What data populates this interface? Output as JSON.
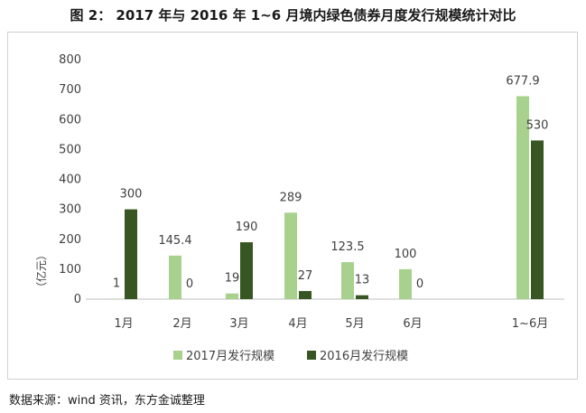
{
  "title": "图 2： 2017 年与 2016 年 1~6 月境内绿色债券月度发行规模统计对比",
  "source": "数据来源：wind 资讯，东方金诚整理",
  "chart_data": {
    "type": "bar",
    "categories": [
      "1月",
      "2月",
      "3月",
      "4月",
      "5月",
      "6月",
      "1~6月"
    ],
    "series": [
      {
        "name": "2017月发行规模",
        "color": "#a9d18e",
        "values": [
          1,
          145.4,
          19,
          289,
          123.5,
          100,
          677.9
        ]
      },
      {
        "name": "2016月发行规模",
        "color": "#375623",
        "values": [
          300,
          0,
          190,
          27,
          13,
          0,
          530
        ]
      }
    ],
    "data_labels": [
      [
        "1",
        "145.4",
        "19",
        "289",
        "123.5",
        "100",
        "677.9"
      ],
      [
        "300",
        "0",
        "190",
        "27",
        "13",
        "0",
        "530"
      ]
    ],
    "ylabel": "（亿元）",
    "yticks": [
      0,
      100,
      200,
      300,
      400,
      500,
      600,
      700,
      800
    ],
    "ylim": [
      0,
      800
    ],
    "grid": false,
    "legend": "bottom"
  }
}
